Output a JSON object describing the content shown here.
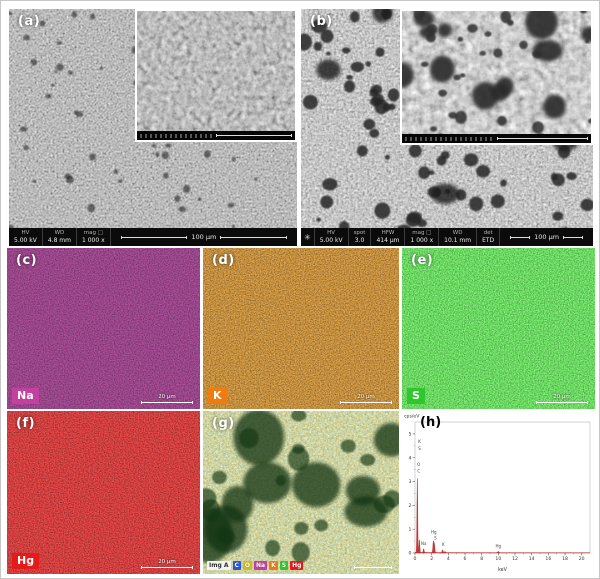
{
  "figure": {
    "panel_a": {
      "label": "(a)",
      "info": {
        "c1k": "HV",
        "c1v": "5.00 kV",
        "c2k": "WD",
        "c2v": "4.8 mm",
        "c3k": "mag □",
        "c3v": "1 000 x",
        "scale": "100 µm"
      }
    },
    "panel_b": {
      "label": "(b)",
      "icon": "✳",
      "info": {
        "c1k": "HV",
        "c1v": "5.00 kV",
        "c2k": "spot",
        "c2v": "3.0",
        "c3k": "HFW",
        "c3v": "414 µm",
        "c4k": "mag □",
        "c4v": "1 000 x",
        "c5k": "WD",
        "c5v": "10.1 mm",
        "c6k": "det",
        "c6v": "ETD",
        "scale": "100 µm"
      }
    },
    "panel_c": {
      "label": "(c)",
      "element": "Na",
      "badge_color": "#c2419e",
      "scale": "20 µm"
    },
    "panel_d": {
      "label": "(d)",
      "element": "K",
      "badge_color": "#ef7c12",
      "scale": "20 µm"
    },
    "panel_e": {
      "label": "(e)",
      "element": "S",
      "badge_color": "#2ec82e",
      "scale": "20 µm"
    },
    "panel_f": {
      "label": "(f)",
      "element": "Hg",
      "badge_color": "#e51a1a",
      "scale": "20 µm"
    },
    "panel_g": {
      "label": "(g)",
      "img_label": "Img A",
      "legend": [
        {
          "sym": "C",
          "color": "#2e54d8"
        },
        {
          "sym": "O",
          "color": "#d2bd17"
        },
        {
          "sym": "Na",
          "color": "#c2419e"
        },
        {
          "sym": "K",
          "color": "#ef7c12"
        },
        {
          "sym": "S",
          "color": "#2ec82e"
        },
        {
          "sym": "Hg",
          "color": "#e51a1a"
        }
      ]
    },
    "panel_h": {
      "label": "(h)"
    }
  },
  "chart_data": {
    "type": "line",
    "title": "",
    "xlabel": "keV",
    "ylabel": "cps/eV",
    "xlim": [
      0,
      21
    ],
    "ylim": [
      0,
      5.5
    ],
    "x_ticks": [
      0,
      2,
      4,
      6,
      8,
      10,
      12,
      14,
      16,
      18,
      20
    ],
    "y_ticks": [
      0,
      1,
      2,
      3,
      4,
      5
    ],
    "line_color": "#d42222",
    "peaks": [
      {
        "element": "C",
        "kev": 0.28,
        "height": 3.2
      },
      {
        "element": "O",
        "kev": 0.53,
        "height": 0.55
      },
      {
        "element": "Na",
        "kev": 1.04,
        "height": 0.16
      },
      {
        "element": "Hg",
        "kev": 2.2,
        "height": 0.46
      },
      {
        "element": "S",
        "kev": 2.32,
        "height": 0.36
      },
      {
        "element": "K",
        "kev": 3.31,
        "height": 0.12
      },
      {
        "element": "K",
        "kev": 3.59,
        "height": 0.05
      },
      {
        "element": "Hg",
        "kev": 9.99,
        "height": 0.05
      }
    ],
    "annotations": [
      {
        "text": "K",
        "x": 0.55,
        "y": 4.62
      },
      {
        "text": "S",
        "x": 0.55,
        "y": 4.33
      },
      {
        "text": "O",
        "x": 0.45,
        "y": 3.66
      },
      {
        "text": "C",
        "x": 0.45,
        "y": 3.38
      },
      {
        "text": "Na",
        "x": 1.05,
        "y": 0.34
      },
      {
        "text": "Hg",
        "x": 2.25,
        "y": 0.82
      },
      {
        "text": "S",
        "x": 2.45,
        "y": 0.56
      },
      {
        "text": "K",
        "x": 3.4,
        "y": 0.3
      },
      {
        "text": "Hg",
        "x": 10.0,
        "y": 0.24
      }
    ]
  }
}
